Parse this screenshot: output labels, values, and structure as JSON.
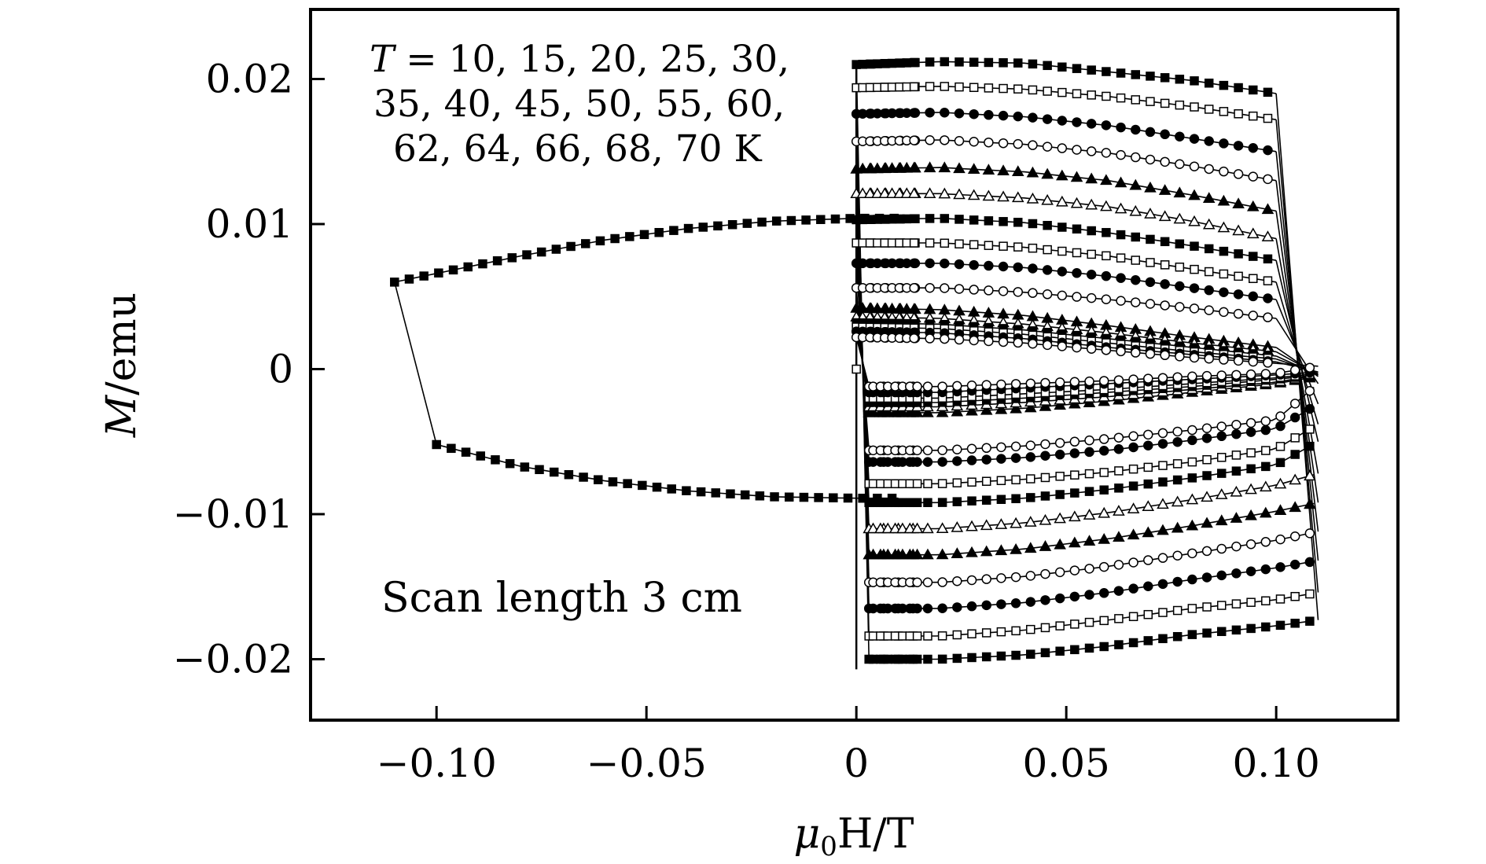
{
  "chart_data": {
    "type": "line",
    "title": "",
    "xlabel": "μ0H/T",
    "xlabel_main": "μ",
    "xlabel_sub": "0",
    "xlabel_rest": "H/T",
    "ylabel": "M/emu",
    "ylabel_italic": "M",
    "ylabel_rest": "/emu",
    "xlim": [
      -0.13,
      0.129
    ],
    "ylim": [
      -0.0242,
      0.0248
    ],
    "x_ticks": [
      -0.1,
      -0.05,
      0,
      0.05,
      0.1
    ],
    "x_tick_labels": [
      "−0.10",
      "−0.05",
      "0",
      "0.05",
      "0.10"
    ],
    "y_ticks": [
      0.02,
      0.01,
      0,
      -0.01,
      -0.02
    ],
    "y_tick_labels": [
      "0.02",
      "0.01",
      "0",
      "−0.01",
      "−0.02"
    ],
    "grid": false,
    "annotations": {
      "temperatures_line1": "T = 10, 15, 20, 25, 30,",
      "temperatures_line1_var": "T",
      "temperatures_line1_rest": " = 10, 15, 20, 25, 30,",
      "temperatures_line2": "35, 40, 45, 50, 55, 60,",
      "temperatures_line3": "62, 64, 66, 68, 70 K",
      "scan_length": "Scan length 3 cm"
    },
    "temperatures_K": [
      10,
      15,
      20,
      25,
      30,
      35,
      40,
      45,
      50,
      55,
      60,
      62,
      64,
      66,
      68,
      70
    ],
    "series": [
      {
        "name": "T=10 K",
        "marker": "square-filled",
        "upper": {
          "H": [
            0,
            0.02,
            0.04,
            0.06,
            0.08,
            0.1
          ],
          "M": [
            0.021,
            0.0212,
            0.0211,
            0.0205,
            0.0199,
            0.019
          ]
        },
        "lower": {
          "H": [
            0.003,
            0.02,
            0.04,
            0.06,
            0.08,
            0.1,
            0.11
          ],
          "M": [
            -0.02,
            -0.02,
            -0.0197,
            -0.0191,
            -0.0183,
            -0.0177,
            -0.0173
          ]
        }
      },
      {
        "name": "T=15 K",
        "marker": "square-open",
        "upper": {
          "H": [
            0,
            0.02,
            0.04,
            0.06,
            0.08,
            0.1
          ],
          "M": [
            0.0194,
            0.0195,
            0.0193,
            0.0188,
            0.0181,
            0.0172
          ]
        },
        "lower": {
          "H": [
            0.003,
            0.02,
            0.04,
            0.06,
            0.08,
            0.1,
            0.11
          ],
          "M": [
            -0.0184,
            -0.0184,
            -0.018,
            -0.0173,
            -0.0165,
            -0.0159,
            -0.0154
          ]
        }
      },
      {
        "name": "T=20 K",
        "marker": "circle-filled",
        "upper": {
          "H": [
            0,
            0.02,
            0.04,
            0.06,
            0.08,
            0.1
          ],
          "M": [
            0.0176,
            0.0177,
            0.0174,
            0.0168,
            0.0159,
            0.015
          ]
        },
        "lower": {
          "H": [
            0.003,
            0.02,
            0.04,
            0.06,
            0.08,
            0.1,
            0.11
          ],
          "M": [
            -0.0165,
            -0.0165,
            -0.0161,
            -0.0154,
            -0.0145,
            -0.0137,
            -0.0132
          ]
        }
      },
      {
        "name": "T=25 K",
        "marker": "circle-open",
        "upper": {
          "H": [
            0,
            0.02,
            0.04,
            0.06,
            0.08,
            0.1
          ],
          "M": [
            0.0157,
            0.0158,
            0.0155,
            0.0149,
            0.014,
            0.013
          ]
        },
        "lower": {
          "H": [
            0.003,
            0.02,
            0.04,
            0.06,
            0.08,
            0.1,
            0.11
          ],
          "M": [
            -0.0147,
            -0.0147,
            -0.0143,
            -0.0136,
            -0.0127,
            -0.0118,
            -0.0112
          ]
        }
      },
      {
        "name": "T=30 K",
        "marker": "triangle-filled",
        "upper": {
          "H": [
            0,
            0.02,
            0.04,
            0.06,
            0.08,
            0.1
          ],
          "M": [
            0.0138,
            0.0139,
            0.0136,
            0.013,
            0.012,
            0.0109
          ]
        },
        "lower": {
          "H": [
            0.003,
            0.02,
            0.04,
            0.06,
            0.08,
            0.1,
            0.11
          ],
          "M": [
            -0.0128,
            -0.0128,
            -0.0124,
            -0.0117,
            -0.0108,
            -0.0098,
            -0.0092
          ]
        }
      },
      {
        "name": "T=35 K",
        "marker": "triangle-open",
        "upper": {
          "H": [
            0,
            0.02,
            0.04,
            0.06,
            0.08,
            0.1
          ],
          "M": [
            0.0121,
            0.0121,
            0.0118,
            0.0112,
            0.0102,
            0.009
          ]
        },
        "lower": {
          "H": [
            0.003,
            0.02,
            0.04,
            0.06,
            0.08,
            0.1,
            0.11
          ],
          "M": [
            -0.011,
            -0.011,
            -0.0106,
            -0.0099,
            -0.009,
            -0.008,
            -0.0072
          ]
        }
      },
      {
        "name": "T=40 K",
        "marker": "square-filled",
        "upper": {
          "H": [
            0,
            0.02,
            0.04,
            0.06,
            0.08,
            0.1
          ],
          "M": [
            0.0103,
            0.0104,
            0.0101,
            0.0094,
            0.0085,
            0.0075
          ]
        },
        "lower": {
          "H": [
            0.003,
            0.02,
            0.04,
            0.06,
            0.08,
            0.1,
            0.11
          ],
          "M": [
            -0.0092,
            -0.0092,
            -0.0089,
            -0.0083,
            -0.0075,
            -0.0066,
            -0.005
          ]
        }
      },
      {
        "name": "T=45 K",
        "marker": "square-open",
        "upper": {
          "H": [
            0,
            0.02,
            0.04,
            0.06,
            0.08,
            0.1
          ],
          "M": [
            0.0087,
            0.0087,
            0.0084,
            0.0078,
            0.0069,
            0.006
          ]
        },
        "lower": {
          "H": [
            0.003,
            0.02,
            0.04,
            0.06,
            0.08,
            0.1,
            0.11
          ],
          "M": [
            -0.0079,
            -0.0079,
            -0.0076,
            -0.0071,
            -0.0064,
            -0.0055,
            -0.0038
          ]
        }
      },
      {
        "name": "T=50 K",
        "marker": "circle-filled",
        "upper": {
          "H": [
            0,
            0.02,
            0.04,
            0.06,
            0.08,
            0.1
          ],
          "M": [
            0.0073,
            0.0073,
            0.007,
            0.0064,
            0.0056,
            0.0048
          ]
        },
        "lower": {
          "H": [
            0.003,
            0.02,
            0.04,
            0.06,
            0.08,
            0.1,
            0.11
          ],
          "M": [
            -0.0064,
            -0.0064,
            -0.0061,
            -0.0056,
            -0.0049,
            -0.0041,
            -0.0024
          ]
        }
      },
      {
        "name": "T=55 K",
        "marker": "circle-open",
        "upper": {
          "H": [
            0,
            0.02,
            0.04,
            0.06,
            0.08,
            0.1
          ],
          "M": [
            0.0056,
            0.0056,
            0.0053,
            0.0048,
            0.0042,
            0.0035
          ]
        },
        "lower": {
          "H": [
            0.003,
            0.02,
            0.04,
            0.06,
            0.08,
            0.1,
            0.11
          ],
          "M": [
            -0.0056,
            -0.0056,
            -0.0053,
            -0.0048,
            -0.0042,
            -0.0035,
            -0.001
          ]
        }
      },
      {
        "name": "T=60 K",
        "marker": "triangle-filled",
        "upper": {
          "H": [
            0,
            0.02,
            0.04,
            0.06,
            0.08,
            0.1
          ],
          "M": [
            0.0042,
            0.0041,
            0.0037,
            0.003,
            0.0022,
            0.0015
          ]
        },
        "lower": {
          "H": [
            0.003,
            0.02,
            0.04,
            0.06,
            0.08,
            0.1,
            0.11
          ],
          "M": [
            -0.003,
            -0.003,
            -0.0027,
            -0.0022,
            -0.0016,
            -0.001,
            -0.0005
          ]
        }
      },
      {
        "name": "T=62 K",
        "marker": "triangle-open",
        "upper": {
          "H": [
            0,
            0.02,
            0.04,
            0.06,
            0.08,
            0.1
          ],
          "M": [
            0.0036,
            0.0035,
            0.0031,
            0.0025,
            0.0018,
            0.0012
          ]
        },
        "lower": {
          "H": [
            0.003,
            0.02,
            0.04,
            0.06,
            0.08,
            0.1,
            0.11
          ],
          "M": [
            -0.0026,
            -0.0026,
            -0.0023,
            -0.0019,
            -0.0014,
            -0.0009,
            -0.0004
          ]
        }
      },
      {
        "name": "T=64 K",
        "marker": "square-filled",
        "upper": {
          "H": [
            0,
            0.02,
            0.04,
            0.06,
            0.08,
            0.1
          ],
          "M": [
            0.0032,
            0.0031,
            0.0027,
            0.0021,
            0.0015,
            0.0009
          ]
        },
        "lower": {
          "H": [
            0.003,
            0.02,
            0.04,
            0.06,
            0.08,
            0.1,
            0.11
          ],
          "M": [
            -0.0023,
            -0.0023,
            -0.002,
            -0.0016,
            -0.0012,
            -0.0007,
            -0.0004
          ]
        }
      },
      {
        "name": "T=66 K",
        "marker": "square-open",
        "upper": {
          "H": [
            0,
            0.02,
            0.04,
            0.06,
            0.08,
            0.1
          ],
          "M": [
            0.0029,
            0.0028,
            0.0024,
            0.0018,
            0.0012,
            0.0007
          ]
        },
        "lower": {
          "H": [
            0.003,
            0.02,
            0.04,
            0.06,
            0.08,
            0.1,
            0.11
          ],
          "M": [
            -0.002,
            -0.002,
            -0.0017,
            -0.0014,
            -0.001,
            -0.0006,
            -0.0003
          ]
        }
      },
      {
        "name": "T=68 K",
        "marker": "circle-filled",
        "upper": {
          "H": [
            0,
            0.02,
            0.04,
            0.06,
            0.08,
            0.1
          ],
          "M": [
            0.0026,
            0.0025,
            0.0021,
            0.0015,
            0.001,
            0.0005
          ]
        },
        "lower": {
          "H": [
            0.003,
            0.02,
            0.04,
            0.06,
            0.08,
            0.1,
            0.11
          ],
          "M": [
            -0.0016,
            -0.0016,
            -0.0013,
            -0.001,
            -0.0007,
            -0.0004,
            -0.0002
          ]
        }
      },
      {
        "name": "T=70 K",
        "marker": "circle-open",
        "upper": {
          "H": [
            0,
            0.02,
            0.04,
            0.06,
            0.08,
            0.1
          ],
          "M": [
            0.0022,
            0.0021,
            0.0018,
            0.0013,
            0.0008,
            0.0004
          ]
        },
        "lower": {
          "H": [
            0.003,
            0.02,
            0.04,
            0.06,
            0.08,
            0.1,
            0.11
          ],
          "M": [
            -0.0012,
            -0.0012,
            -0.001,
            -0.0008,
            -0.0005,
            -0.0003,
            0.0002
          ]
        }
      }
    ],
    "full_loop_10K": {
      "marker": "square-filled",
      "upper": {
        "H": [
          -0.11,
          -0.1,
          -0.08,
          -0.06,
          -0.04,
          -0.02,
          0,
          0.01
        ],
        "M": [
          0.006,
          0.0066,
          0.0078,
          0.0089,
          0.0097,
          0.0102,
          0.0104,
          0.0104
        ]
      },
      "lower": {
        "H": [
          -0.1,
          -0.08,
          -0.06,
          -0.04,
          -0.02,
          0,
          0.01
        ],
        "M": [
          -0.0052,
          -0.0067,
          -0.0077,
          -0.0084,
          -0.0088,
          -0.0089,
          -0.0089
        ]
      }
    },
    "initial_point": {
      "H": 0,
      "M": 0
    }
  }
}
